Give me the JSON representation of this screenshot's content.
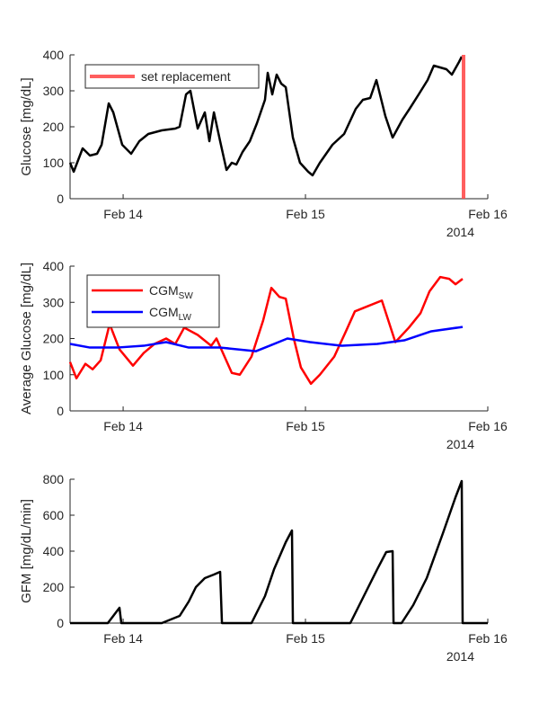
{
  "chart_data": [
    {
      "type": "line",
      "ylabel": "Glucose [mg/dL]",
      "xlim": [
        13.709,
        16
      ],
      "xticks": [
        {
          "value": 14,
          "label": "Feb 14"
        },
        {
          "value": 15,
          "label": "Feb 15"
        },
        {
          "value": 16,
          "label": "Feb 16"
        }
      ],
      "x_year_label": "2014",
      "ylim": [
        0,
        400
      ],
      "yticks": [
        0,
        100,
        200,
        300,
        400
      ],
      "legend": "upper left",
      "series": [
        {
          "color": "#000000",
          "x": [
            13.709,
            13.729,
            13.778,
            13.818,
            13.857,
            13.882,
            13.921,
            13.946,
            13.995,
            14.044,
            14.089,
            14.138,
            14.212,
            14.286,
            14.31,
            14.345,
            14.369,
            14.409,
            14.448,
            14.473,
            14.498,
            14.532,
            14.567,
            14.596,
            14.621,
            14.655,
            14.695,
            14.734,
            14.778,
            14.793,
            14.818,
            14.842,
            14.867,
            14.892,
            14.931,
            14.97,
            15.015,
            15.039,
            15.079,
            15.148,
            15.212,
            15.276,
            15.315,
            15.355,
            15.389,
            15.438,
            15.478,
            15.532,
            15.571,
            15.621,
            15.67,
            15.704,
            15.773,
            15.803,
            15.842,
            15.857
          ],
          "values": [
            100,
            75,
            140,
            120,
            125,
            150,
            265,
            240,
            150,
            125,
            160,
            180,
            190,
            195,
            200,
            290,
            300,
            195,
            240,
            160,
            240,
            160,
            80,
            100,
            95,
            130,
            160,
            210,
            275,
            350,
            290,
            345,
            320,
            310,
            170,
            100,
            75,
            65,
            100,
            150,
            180,
            250,
            275,
            280,
            330,
            230,
            170,
            220,
            250,
            290,
            330,
            370,
            360,
            345,
            380,
            395
          ]
        },
        {
          "name": "set replacement",
          "color": "#ff4d4d",
          "x": [
            15.867,
            15.867
          ],
          "values": [
            0,
            400
          ]
        }
      ]
    },
    {
      "type": "line",
      "ylabel": "Average Glucose [mg/dL]",
      "xlim": [
        13.709,
        16
      ],
      "xticks": [
        {
          "value": 14,
          "label": "Feb 14"
        },
        {
          "value": 15,
          "label": "Feb 15"
        },
        {
          "value": 16,
          "label": "Feb 16"
        }
      ],
      "x_year_label": "2014",
      "ylim": [
        0,
        400
      ],
      "yticks": [
        0,
        100,
        200,
        300,
        400
      ],
      "legend": "upper left",
      "series": [
        {
          "name": "CGM",
          "name_subscript": "SW",
          "color": "#ff0000",
          "x": [
            13.709,
            13.744,
            13.793,
            13.833,
            13.877,
            13.926,
            13.98,
            14.054,
            14.113,
            14.172,
            14.236,
            14.286,
            14.335,
            14.409,
            14.483,
            14.512,
            14.596,
            14.64,
            14.704,
            14.768,
            14.813,
            14.857,
            14.892,
            14.936,
            14.975,
            15.03,
            15.079,
            15.158,
            15.222,
            15.271,
            15.32,
            15.419,
            15.493,
            15.567,
            15.631,
            15.68,
            15.739,
            15.788,
            15.823,
            15.862
          ],
          "values": [
            135,
            90,
            130,
            115,
            140,
            240,
            170,
            125,
            160,
            185,
            200,
            185,
            230,
            210,
            180,
            200,
            105,
            100,
            150,
            250,
            340,
            315,
            310,
            200,
            120,
            75,
            100,
            150,
            220,
            275,
            285,
            305,
            190,
            230,
            270,
            330,
            370,
            365,
            350,
            365
          ]
        },
        {
          "name": "CGM",
          "name_subscript": "LW",
          "color": "#0000ff",
          "x": [
            13.709,
            13.818,
            13.966,
            14.113,
            14.236,
            14.36,
            14.532,
            14.729,
            14.803,
            14.901,
            15.025,
            15.197,
            15.394,
            15.542,
            15.69,
            15.862
          ],
          "values": [
            185,
            175,
            175,
            180,
            190,
            175,
            175,
            165,
            180,
            200,
            190,
            180,
            185,
            195,
            220,
            232
          ]
        }
      ]
    },
    {
      "type": "line",
      "ylabel": "GFM [mg/dL/min]",
      "xlim": [
        13.709,
        16
      ],
      "xticks": [
        {
          "value": 14,
          "label": "Feb 14"
        },
        {
          "value": 15,
          "label": "Feb 15"
        },
        {
          "value": 16,
          "label": "Feb 16"
        }
      ],
      "x_year_label": "2014",
      "ylim": [
        0,
        800
      ],
      "yticks": [
        0,
        200,
        400,
        600,
        800
      ],
      "series": [
        {
          "color": "#000000",
          "x": [
            13.709,
            13.916,
            13.98,
            13.99,
            14.212,
            14.31,
            14.36,
            14.399,
            14.448,
            14.498,
            14.532,
            14.542,
            14.704,
            14.778,
            14.828,
            14.892,
            14.926,
            14.931,
            15.246,
            15.32,
            15.394,
            15.443,
            15.478,
            15.483,
            15.527,
            15.591,
            15.665,
            15.754,
            15.823,
            15.857,
            15.862,
            16
          ],
          "values": [
            0,
            0,
            85,
            0,
            0,
            40,
            120,
            200,
            250,
            270,
            285,
            0,
            0,
            150,
            300,
            450,
            515,
            0,
            0,
            150,
            300,
            395,
            400,
            0,
            0,
            100,
            250,
            500,
            700,
            790,
            0,
            0
          ]
        }
      ]
    }
  ]
}
